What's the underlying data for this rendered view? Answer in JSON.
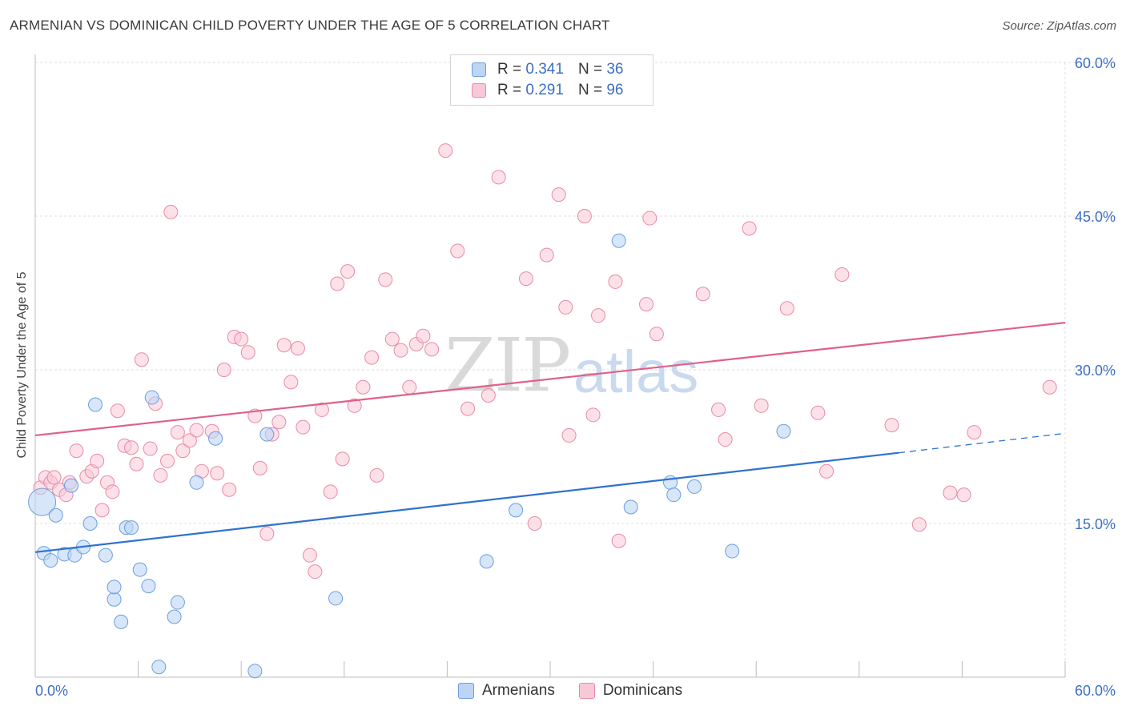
{
  "header": {
    "title": "ARMENIAN VS DOMINICAN CHILD POVERTY UNDER THE AGE OF 5 CORRELATION CHART",
    "source": "Source: ZipAtlas.com"
  },
  "legend": {
    "armenians": {
      "r_label": "R =",
      "r_value": "0.341",
      "n_label": "N =",
      "n_value": "36"
    },
    "dominicans": {
      "r_label": "R =",
      "r_value": "0.291",
      "n_label": "N =",
      "n_value": "96"
    }
  },
  "bottom_legend": {
    "armenians": "Armenians",
    "dominicans": "Dominicans"
  },
  "watermark": {
    "zip": "ZIP",
    "atlas": "atlas"
  },
  "colors": {
    "armenian_fill": "#bcd5f5",
    "armenian_stroke": "#6b9fdf",
    "armenian_line": "#2f72d0",
    "dominican_fill": "#f9c8d6",
    "dominican_stroke": "#e88aa8",
    "dominican_line": "#e0608a",
    "tick_label": "#3d6fc4"
  },
  "chart_data": {
    "type": "scatter",
    "title": "ARMENIAN VS DOMINICAN CHILD POVERTY UNDER THE AGE OF 5 CORRELATION CHART",
    "xlabel": "",
    "ylabel": "Child Poverty Under the Age of 5",
    "xlim": [
      0,
      60
    ],
    "ylim": [
      0,
      60
    ],
    "x_tick_labels": [
      "0.0%",
      "60.0%"
    ],
    "y_tick_labels": [
      "15.0%",
      "30.0%",
      "45.0%",
      "60.0%"
    ],
    "y_ticks": [
      15,
      30,
      45,
      60
    ],
    "series": [
      {
        "name": "Armenians",
        "r": 0.341,
        "n": 36,
        "trend": {
          "x0": 0,
          "y0": 12.2,
          "x1": 50.3,
          "y1": 21.9,
          "dash_x1": 60,
          "dash_y1": 23.8
        },
        "points": [
          [
            0.4,
            17.1
          ],
          [
            0.5,
            12.1
          ],
          [
            0.9,
            11.4
          ],
          [
            1.2,
            15.8
          ],
          [
            1.7,
            12.0
          ],
          [
            2.1,
            18.7
          ],
          [
            2.3,
            11.9
          ],
          [
            2.8,
            12.7
          ],
          [
            3.2,
            15.0
          ],
          [
            3.5,
            26.6
          ],
          [
            4.1,
            11.9
          ],
          [
            4.6,
            7.6
          ],
          [
            4.6,
            8.8
          ],
          [
            5.0,
            5.4
          ],
          [
            5.3,
            14.6
          ],
          [
            5.6,
            14.6
          ],
          [
            6.1,
            10.5
          ],
          [
            6.6,
            8.9
          ],
          [
            6.8,
            27.3
          ],
          [
            7.2,
            1.0
          ],
          [
            8.1,
            5.9
          ],
          [
            8.3,
            7.3
          ],
          [
            9.4,
            19.0
          ],
          [
            10.5,
            23.3
          ],
          [
            12.8,
            0.6
          ],
          [
            13.5,
            23.7
          ],
          [
            17.5,
            7.7
          ],
          [
            26.3,
            11.3
          ],
          [
            28.0,
            16.3
          ],
          [
            34.0,
            42.6
          ],
          [
            34.7,
            16.6
          ],
          [
            37.0,
            19.0
          ],
          [
            37.2,
            17.8
          ],
          [
            38.4,
            18.6
          ],
          [
            40.6,
            12.3
          ],
          [
            43.6,
            24.0
          ]
        ]
      },
      {
        "name": "Dominicans",
        "r": 0.291,
        "n": 96,
        "trend": {
          "x0": 0,
          "y0": 23.6,
          "x1": 60,
          "y1": 34.6
        },
        "points": [
          [
            0.3,
            18.5
          ],
          [
            0.6,
            19.5
          ],
          [
            0.9,
            19.0
          ],
          [
            1.1,
            19.5
          ],
          [
            1.4,
            18.3
          ],
          [
            1.8,
            17.8
          ],
          [
            2.0,
            19.0
          ],
          [
            2.4,
            22.1
          ],
          [
            3.0,
            19.6
          ],
          [
            3.3,
            20.1
          ],
          [
            3.6,
            21.1
          ],
          [
            3.9,
            16.3
          ],
          [
            4.2,
            19.0
          ],
          [
            4.5,
            18.1
          ],
          [
            4.8,
            26.0
          ],
          [
            5.2,
            22.6
          ],
          [
            5.6,
            22.4
          ],
          [
            5.9,
            20.8
          ],
          [
            6.2,
            31.0
          ],
          [
            6.7,
            22.3
          ],
          [
            7.0,
            26.7
          ],
          [
            7.3,
            19.7
          ],
          [
            7.7,
            21.1
          ],
          [
            7.9,
            45.4
          ],
          [
            8.3,
            23.9
          ],
          [
            8.6,
            22.1
          ],
          [
            9.0,
            23.1
          ],
          [
            9.4,
            24.1
          ],
          [
            9.7,
            20.1
          ],
          [
            10.3,
            24.0
          ],
          [
            10.6,
            19.9
          ],
          [
            11.0,
            30.0
          ],
          [
            11.3,
            18.3
          ],
          [
            11.6,
            33.2
          ],
          [
            12.0,
            33.0
          ],
          [
            12.4,
            31.7
          ],
          [
            12.8,
            25.5
          ],
          [
            13.1,
            20.4
          ],
          [
            13.5,
            14.0
          ],
          [
            13.8,
            23.7
          ],
          [
            14.2,
            24.9
          ],
          [
            14.5,
            32.4
          ],
          [
            14.9,
            28.8
          ],
          [
            15.3,
            32.1
          ],
          [
            15.6,
            24.4
          ],
          [
            16.0,
            11.9
          ],
          [
            16.3,
            10.3
          ],
          [
            16.7,
            26.1
          ],
          [
            17.2,
            18.1
          ],
          [
            17.6,
            38.4
          ],
          [
            17.9,
            21.3
          ],
          [
            18.2,
            39.6
          ],
          [
            18.6,
            26.5
          ],
          [
            19.1,
            28.3
          ],
          [
            19.6,
            31.2
          ],
          [
            19.9,
            19.7
          ],
          [
            20.4,
            38.8
          ],
          [
            20.8,
            33.0
          ],
          [
            21.3,
            31.9
          ],
          [
            21.8,
            28.3
          ],
          [
            22.2,
            32.5
          ],
          [
            22.6,
            33.3
          ],
          [
            23.1,
            32.0
          ],
          [
            23.9,
            51.4
          ],
          [
            24.6,
            41.6
          ],
          [
            25.2,
            26.2
          ],
          [
            26.4,
            27.5
          ],
          [
            27.0,
            48.8
          ],
          [
            28.6,
            38.9
          ],
          [
            29.1,
            15.0
          ],
          [
            29.8,
            41.2
          ],
          [
            30.5,
            47.1
          ],
          [
            30.9,
            36.1
          ],
          [
            31.1,
            23.6
          ],
          [
            32.0,
            45.0
          ],
          [
            32.5,
            25.6
          ],
          [
            32.8,
            35.3
          ],
          [
            33.8,
            38.6
          ],
          [
            34.0,
            13.3
          ],
          [
            35.6,
            36.4
          ],
          [
            35.8,
            44.8
          ],
          [
            36.2,
            33.5
          ],
          [
            38.9,
            37.4
          ],
          [
            39.8,
            26.1
          ],
          [
            40.2,
            23.2
          ],
          [
            41.6,
            43.8
          ],
          [
            42.3,
            26.5
          ],
          [
            43.8,
            36.0
          ],
          [
            45.6,
            25.8
          ],
          [
            46.1,
            20.1
          ],
          [
            47.0,
            39.3
          ],
          [
            49.9,
            24.6
          ],
          [
            51.5,
            14.9
          ],
          [
            53.3,
            18.0
          ],
          [
            54.1,
            17.8
          ],
          [
            54.7,
            23.9
          ],
          [
            59.1,
            28.3
          ]
        ]
      }
    ]
  }
}
